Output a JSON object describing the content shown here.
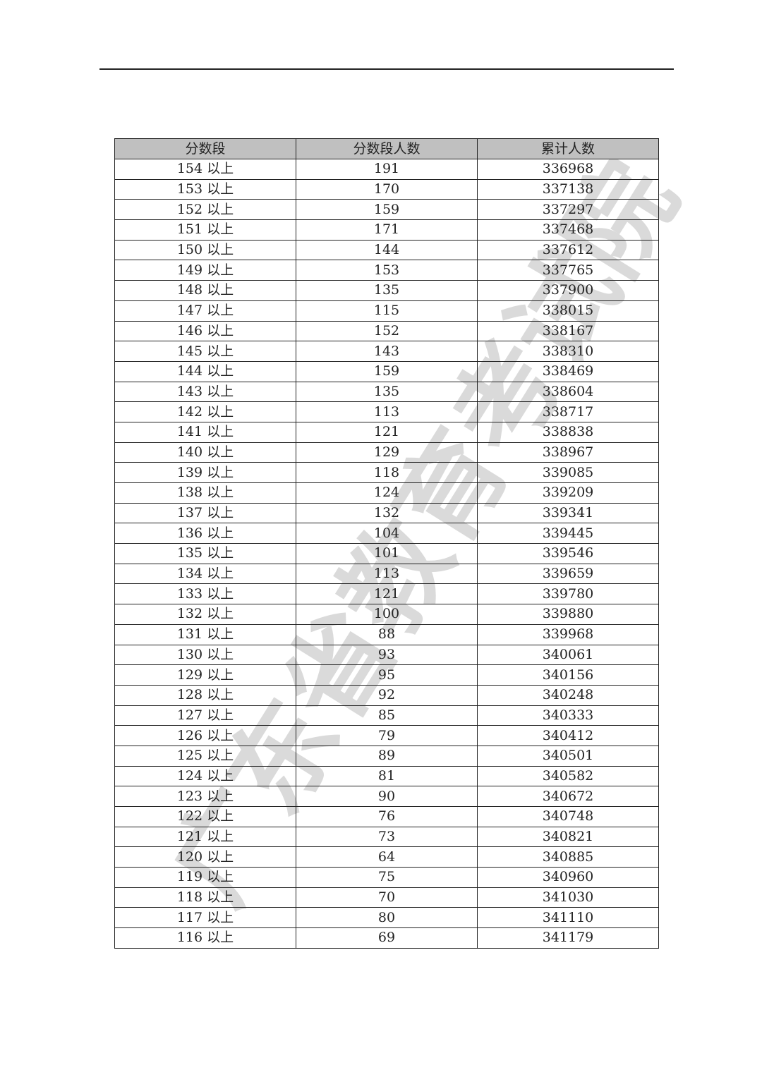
{
  "headers": [
    "分数段",
    "分数段人数",
    "累计人数"
  ],
  "suffix": "以上",
  "rows": [
    [
      "154",
      "191",
      "336968"
    ],
    [
      "153",
      "170",
      "337138"
    ],
    [
      "152",
      "159",
      "337297"
    ],
    [
      "151",
      "171",
      "337468"
    ],
    [
      "150",
      "144",
      "337612"
    ],
    [
      "149",
      "153",
      "337765"
    ],
    [
      "148",
      "135",
      "337900"
    ],
    [
      "147",
      "115",
      "338015"
    ],
    [
      "146",
      "152",
      "338167"
    ],
    [
      "145",
      "143",
      "338310"
    ],
    [
      "144",
      "159",
      "338469"
    ],
    [
      "143",
      "135",
      "338604"
    ],
    [
      "142",
      "113",
      "338717"
    ],
    [
      "141",
      "121",
      "338838"
    ],
    [
      "140",
      "129",
      "338967"
    ],
    [
      "139",
      "118",
      "339085"
    ],
    [
      "138",
      "124",
      "339209"
    ],
    [
      "137",
      "132",
      "339341"
    ],
    [
      "136",
      "104",
      "339445"
    ],
    [
      "135",
      "101",
      "339546"
    ],
    [
      "134",
      "113",
      "339659"
    ],
    [
      "133",
      "121",
      "339780"
    ],
    [
      "132",
      "100",
      "339880"
    ],
    [
      "131",
      "88",
      "339968"
    ],
    [
      "130",
      "93",
      "340061"
    ],
    [
      "129",
      "95",
      "340156"
    ],
    [
      "128",
      "92",
      "340248"
    ],
    [
      "127",
      "85",
      "340333"
    ],
    [
      "126",
      "79",
      "340412"
    ],
    [
      "125",
      "89",
      "340501"
    ],
    [
      "124",
      "81",
      "340582"
    ],
    [
      "123",
      "90",
      "340672"
    ],
    [
      "122",
      "76",
      "340748"
    ],
    [
      "121",
      "73",
      "340821"
    ],
    [
      "120",
      "64",
      "340885"
    ],
    [
      "119",
      "75",
      "340960"
    ],
    [
      "118",
      "70",
      "341030"
    ],
    [
      "117",
      "80",
      "341110"
    ],
    [
      "116",
      "69",
      "341179"
    ]
  ],
  "watermark": "广东省教育考试院",
  "colors": {
    "header_bg": "#c0c0c0",
    "border": "#222222"
  }
}
